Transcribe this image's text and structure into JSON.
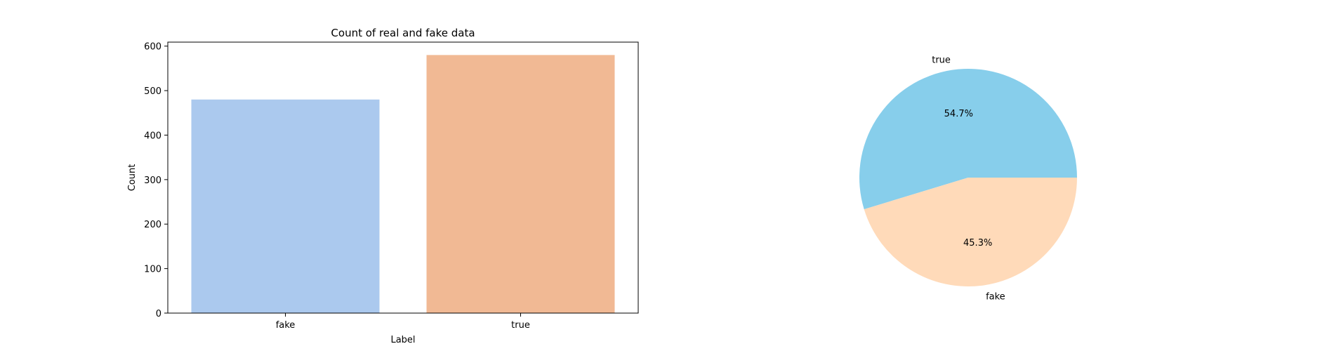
{
  "chart_data": [
    {
      "type": "bar",
      "title": "Count of real and fake data",
      "xlabel": "Label",
      "ylabel": "Count",
      "categories": [
        "fake",
        "true"
      ],
      "values": [
        480,
        580
      ],
      "colors": [
        "#abc9ee",
        "#f1b994"
      ],
      "ylim": [
        0,
        609
      ],
      "yticks": [
        0,
        100,
        200,
        300,
        400,
        500,
        600
      ],
      "grid": false
    },
    {
      "type": "pie",
      "labels": [
        "true",
        "fake"
      ],
      "values": [
        54.7,
        45.3
      ],
      "pct_labels": [
        "54.7%",
        "45.3%"
      ],
      "colors": [
        "#87ceeb",
        "#ffdab9"
      ],
      "startangle": 0
    }
  ]
}
